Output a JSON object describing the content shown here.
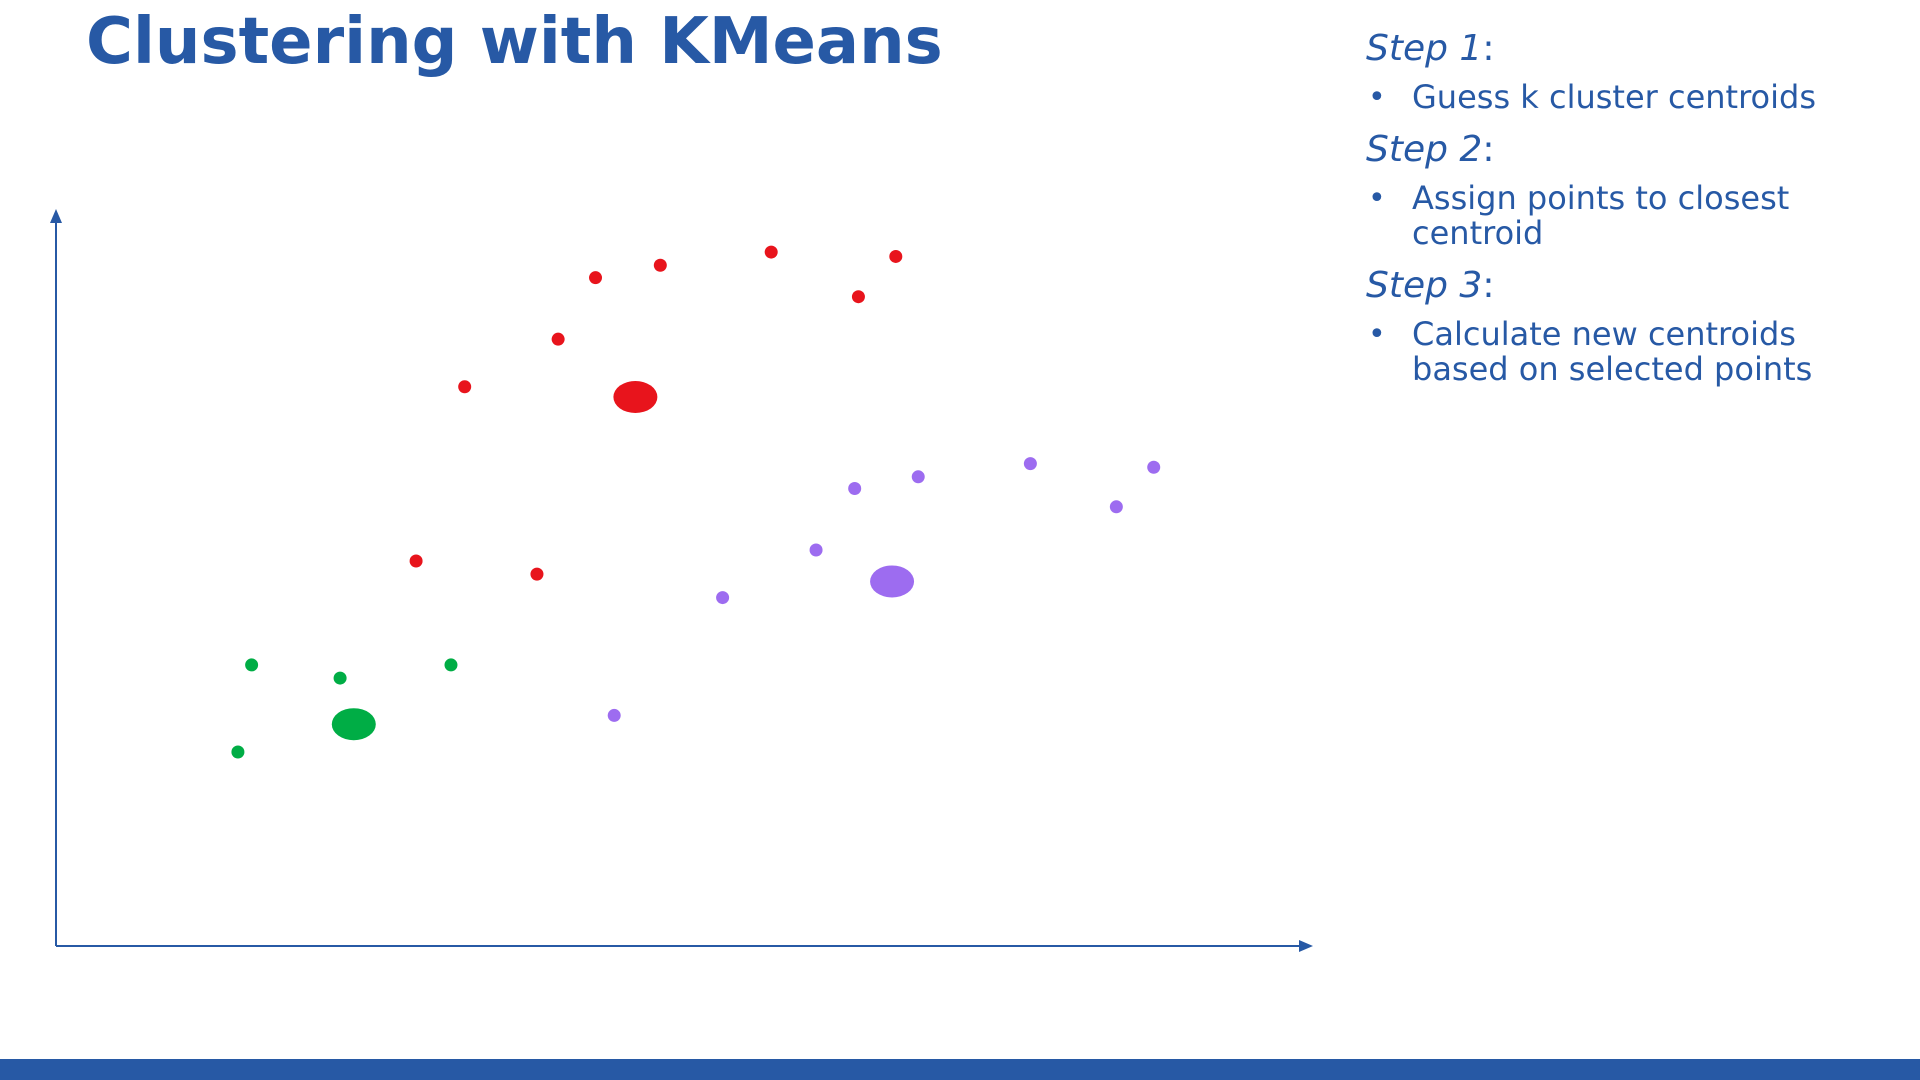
{
  "title": "Clustering with KMeans",
  "steps": [
    {
      "label": "Step 1",
      "suffix": ":",
      "bullet": "Guess k cluster centroids"
    },
    {
      "label": "Step 2",
      "suffix": ":",
      "bullet": "Assign points to closest centroid"
    },
    {
      "label": "Step 3",
      "suffix": ":",
      "bullet": "Calculate new centroids based on selected points"
    }
  ],
  "colors": {
    "accent": "#2759a5",
    "red": "#e8141c",
    "purple": "#9d6cf0",
    "green": "#00ad45",
    "background": "#ffffff"
  },
  "icons": {
    "bullet": "bullet-dot-icon",
    "x_axis_arrow": "arrow-right-icon",
    "y_axis_arrow": "arrow-up-icon"
  },
  "chart_data": {
    "type": "scatter",
    "title": "",
    "xlabel": "",
    "ylabel": "",
    "xlim": [
      0,
      100
    ],
    "ylim": [
      0,
      100
    ],
    "grid": false,
    "series": [
      {
        "color": "#e8141c",
        "points": [
          {
            "x": 43.3,
            "y": 91.3
          },
          {
            "x": 48.5,
            "y": 93.0
          },
          {
            "x": 57.4,
            "y": 94.8
          },
          {
            "x": 67.4,
            "y": 94.2
          },
          {
            "x": 64.4,
            "y": 88.7
          },
          {
            "x": 40.3,
            "y": 82.9
          },
          {
            "x": 32.8,
            "y": 76.4
          },
          {
            "x": 28.9,
            "y": 52.6
          },
          {
            "x": 38.6,
            "y": 50.8
          }
        ],
        "centroid": {
          "x": 46.5,
          "y": 75.0
        }
      },
      {
        "color": "#9d6cf0",
        "points": [
          {
            "x": 64.1,
            "y": 62.5
          },
          {
            "x": 69.2,
            "y": 64.1
          },
          {
            "x": 78.2,
            "y": 65.9
          },
          {
            "x": 88.1,
            "y": 65.4
          },
          {
            "x": 85.1,
            "y": 60.0
          },
          {
            "x": 61.0,
            "y": 54.1
          },
          {
            "x": 53.5,
            "y": 47.6
          },
          {
            "x": 44.8,
            "y": 31.5
          }
        ],
        "centroid": {
          "x": 67.1,
          "y": 49.8
        }
      },
      {
        "color": "#00ad45",
        "points": [
          {
            "x": 15.7,
            "y": 38.4
          },
          {
            "x": 22.8,
            "y": 36.6
          },
          {
            "x": 31.7,
            "y": 38.4
          },
          {
            "x": 14.6,
            "y": 26.5
          }
        ],
        "centroid": {
          "x": 23.9,
          "y": 30.3
        }
      }
    ]
  }
}
